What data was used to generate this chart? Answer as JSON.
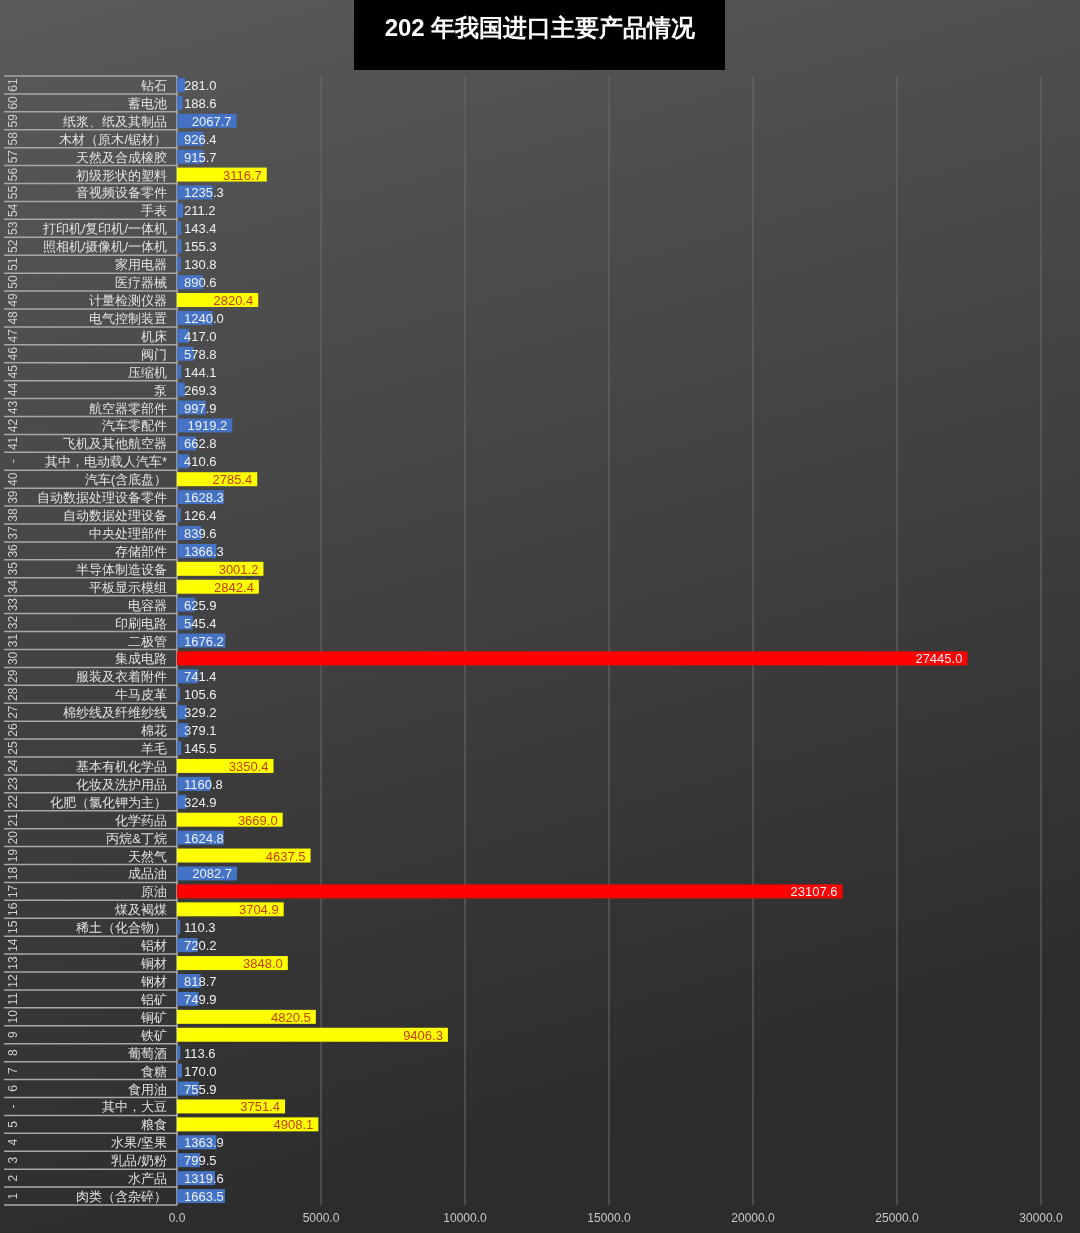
{
  "chart_data": {
    "type": "bar",
    "orientation": "horizontal",
    "title": "202 年我国进口主要产品情况",
    "categories": [
      "钻石",
      "蓄电池",
      "纸浆、纸及其制品",
      "木材（原木/锯材）",
      "天然及合成橡胶",
      "初级形状的塑料",
      "音视频设备零件",
      "手表",
      "打印机/复印机/一体机",
      "照相机/摄像机/一体机",
      "家用电器",
      "医疗器械",
      "计量检测仪器",
      "电气控制装置",
      "机床",
      "阀门",
      "压缩机",
      "泵",
      "航空器零部件",
      "汽车零配件",
      "飞机及其他航空器",
      "其中，电动载人汽车*",
      "汽车(含底盘）",
      "自动数据处理设备零件",
      "自动数据处理设备",
      "中央处理部件",
      "存储部件",
      "半导体制造设备",
      "平板显示模组",
      "电容器",
      "印刷电路",
      "二极管",
      "集成电路",
      "服装及衣着附件",
      "牛马皮革",
      "棉纱线及纤维纱线",
      "棉花",
      "羊毛",
      "基本有机化学品",
      "化妆及洗护用品",
      "化肥（氯化钾为主）",
      "化学药品",
      "丙烷&丁烷",
      "天然气",
      "成品油",
      "原油",
      "煤及褐煤",
      "稀土（化合物）",
      "铝材",
      "铜材",
      "钢材",
      "铝矿",
      "铜矿",
      "铁矿",
      "葡萄酒",
      "食糖",
      "食用油",
      "其中，大豆",
      "粮食",
      "水果/坚果",
      "乳品/奶粉",
      "水产品",
      "肉类（含杂碎）"
    ],
    "y2_categories": [
      "61",
      "60",
      "59",
      "58",
      "57",
      "56",
      "55",
      "54",
      "53",
      "52",
      "51",
      "50",
      "49",
      "48",
      "47",
      "46",
      "45",
      "44",
      "43",
      "42",
      "41",
      "-",
      "40",
      "39",
      "38",
      "37",
      "36",
      "35",
      "34",
      "33",
      "32",
      "31",
      "30",
      "29",
      "28",
      "27",
      "26",
      "25",
      "24",
      "23",
      "22",
      "21",
      "20",
      "19",
      "18",
      "17",
      "16",
      "15",
      "14",
      "13",
      "12",
      "11",
      "10",
      "9",
      "8",
      "7",
      "6",
      "-",
      "5",
      "4",
      "3",
      "2",
      "1"
    ],
    "values": [
      281.0,
      188.6,
      2067.7,
      926.4,
      915.7,
      3116.7,
      1235.3,
      211.2,
      143.4,
      155.3,
      130.8,
      890.6,
      2820.4,
      1240.0,
      417.0,
      578.8,
      144.1,
      269.3,
      997.9,
      1919.2,
      662.8,
      410.6,
      2785.4,
      1628.3,
      126.4,
      839.6,
      1366.3,
      3001.2,
      2842.4,
      625.9,
      545.4,
      1676.2,
      27445.0,
      741.4,
      105.6,
      329.2,
      379.1,
      145.5,
      3350.4,
      1160.8,
      324.9,
      3669.0,
      1624.8,
      4637.5,
      2082.7,
      23107.6,
      3704.9,
      110.3,
      720.2,
      3848.0,
      818.7,
      749.9,
      4820.5,
      9406.3,
      113.6,
      170.0,
      755.9,
      3751.4,
      4908.1,
      1363.9,
      799.5,
      1319.6,
      1663.5
    ],
    "value_labels": [
      "281.0",
      "188.6",
      "2067.7",
      "926.4",
      "915.7",
      "3116.7",
      "1235.3",
      "211.2",
      "143.4",
      "155.3",
      "130.8",
      "890.6",
      "2820.4",
      "1240.0",
      "417.0",
      "578.8",
      "144.1",
      "269.3",
      "997.9",
      "1919.2",
      "662.8",
      "410.6",
      "2785.4",
      "1628.3",
      "126.4",
      "839.6",
      "1366.3",
      "3001.2",
      "2842.4",
      "625.9",
      "545.4",
      "1676.2",
      "27445.0",
      "741.4",
      "105.6",
      "329.2",
      "379.1",
      "145.5",
      "3350.4",
      "1160.8",
      "324.9",
      "3669.0",
      "1624.8",
      "4637.5",
      "2082.7",
      "23107.6",
      "3704.9",
      "110.3",
      "720.2",
      "3848.0",
      "818.7",
      "749.9",
      "4820.5",
      "9406.3",
      "113.6",
      "170.0",
      "755.9",
      "3751.4",
      "4908.1",
      "1363.9",
      "799.5",
      "1319.6",
      "1663.5"
    ],
    "colors": [
      "#4472c4",
      "#4472c4",
      "#4472c4",
      "#4472c4",
      "#4472c4",
      "#ffff00",
      "#4472c4",
      "#4472c4",
      "#4472c4",
      "#4472c4",
      "#4472c4",
      "#4472c4",
      "#ffff00",
      "#4472c4",
      "#4472c4",
      "#4472c4",
      "#4472c4",
      "#4472c4",
      "#4472c4",
      "#4472c4",
      "#4472c4",
      "#4472c4",
      "#ffff00",
      "#4472c4",
      "#4472c4",
      "#4472c4",
      "#4472c4",
      "#ffff00",
      "#ffff00",
      "#4472c4",
      "#4472c4",
      "#4472c4",
      "#ff0000",
      "#4472c4",
      "#4472c4",
      "#4472c4",
      "#4472c4",
      "#4472c4",
      "#ffff00",
      "#4472c4",
      "#4472c4",
      "#ffff00",
      "#4472c4",
      "#ffff00",
      "#4472c4",
      "#ff0000",
      "#ffff00",
      "#4472c4",
      "#4472c4",
      "#ffff00",
      "#4472c4",
      "#4472c4",
      "#ffff00",
      "#ffff00",
      "#4472c4",
      "#4472c4",
      "#4472c4",
      "#ffff00",
      "#ffff00",
      "#4472c4",
      "#4472c4",
      "#4472c4",
      "#4472c4"
    ],
    "xlim": [
      0,
      30000
    ],
    "xticks": [
      {
        "value": 0,
        "label": "0.0"
      },
      {
        "value": 5000,
        "label": "5000.0"
      },
      {
        "value": 10000,
        "label": "10000.0"
      },
      {
        "value": 15000,
        "label": "15000.0"
      },
      {
        "value": 20000,
        "label": "20000.0"
      },
      {
        "value": 25000,
        "label": "25000.0"
      },
      {
        "value": 30000,
        "label": "30000.0"
      }
    ],
    "grid": "x"
  }
}
